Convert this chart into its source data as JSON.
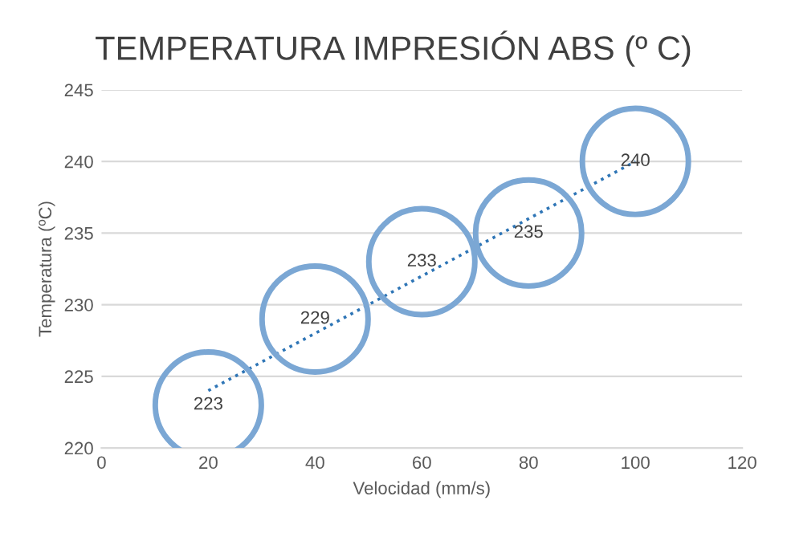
{
  "chart_data": {
    "type": "bubble",
    "title": "TEMPERATURA IMPRESIÓN ABS (º C)",
    "xlabel": "Velocidad (mm/s)",
    "ylabel": "Temperatura (ºC)",
    "x": [
      20,
      40,
      60,
      80,
      100
    ],
    "series": [
      {
        "color": "#7ba7d4",
        "values": [
          223,
          229,
          233,
          235,
          240
        ],
        "sizes": [
          1,
          1,
          1,
          1,
          1
        ],
        "value_labels": [
          "223",
          "229",
          "233",
          "235",
          "240"
        ]
      },
      {
        "type": "line",
        "color": "#2e75b6",
        "x": [
          20,
          100
        ],
        "values": [
          224,
          240
        ],
        "line_style": "dotted"
      }
    ],
    "xlim": [
      0,
      120
    ],
    "xticks": [
      0,
      20,
      40,
      60,
      80,
      100,
      120
    ],
    "ylim": [
      220,
      245
    ],
    "yticks": [
      220,
      225,
      230,
      235,
      240,
      245
    ],
    "grid": "y",
    "legend": false
  }
}
